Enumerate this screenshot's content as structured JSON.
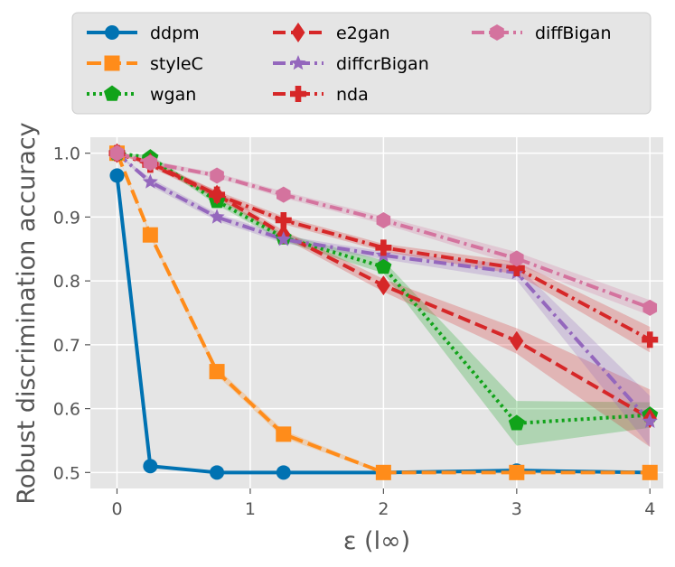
{
  "chart_data": {
    "type": "line",
    "title": "",
    "xlabel": "ε (l∞)",
    "ylabel": "Robust discrimination accuracy",
    "xlim": [
      -0.2,
      4.1
    ],
    "ylim": [
      0.475,
      1.025
    ],
    "xticks": [
      0,
      1,
      2,
      3,
      4
    ],
    "xtick_labels": [
      "0",
      "1",
      "2",
      "3",
      "4"
    ],
    "yticks": [
      0.5,
      0.6,
      0.7,
      0.8,
      0.9,
      1.0
    ],
    "ytick_labels": [
      "0.5",
      "0.6",
      "0.7",
      "0.8",
      "0.9",
      "1.0"
    ],
    "grid": true,
    "legend_position": "top",
    "series": [
      {
        "name": "ddpm",
        "color": "#0072B2",
        "dash": "",
        "marker": "circle",
        "x": [
          0,
          0.25,
          0.75,
          1.25,
          2,
          3,
          4
        ],
        "y": [
          0.965,
          0.51,
          0.5,
          0.5,
          0.5,
          0.503,
          0.5
        ],
        "band": [
          0,
          0,
          0,
          0,
          0,
          0.004,
          0
        ]
      },
      {
        "name": "styleC",
        "color": "#FF8C1A",
        "dash": "16,6",
        "marker": "square",
        "x": [
          0,
          0.25,
          0.75,
          1.25,
          2,
          3,
          4
        ],
        "y": [
          1.0,
          0.872,
          0.658,
          0.56,
          0.5,
          0.5,
          0.5
        ],
        "band": [
          0,
          0.004,
          0.006,
          0.006,
          0.002,
          0.002,
          0.002
        ]
      },
      {
        "name": "wgan",
        "color": "#11A31A",
        "dash": "3,4",
        "marker": "pentagon",
        "x": [
          0,
          0.25,
          0.75,
          1.25,
          2,
          3,
          4
        ],
        "y": [
          1.0,
          0.993,
          0.925,
          0.868,
          0.822,
          0.577,
          0.59
        ],
        "band": [
          0,
          0.004,
          0.006,
          0.006,
          0.01,
          0.035,
          0.02
        ]
      },
      {
        "name": "e2gan",
        "color": "#D62728",
        "dash": "14,6",
        "marker": "diamond",
        "x": [
          0,
          0.25,
          0.75,
          1.25,
          2,
          3,
          4
        ],
        "y": [
          1.0,
          0.985,
          0.935,
          0.873,
          0.793,
          0.706,
          0.585
        ],
        "band": [
          0,
          0.004,
          0.006,
          0.006,
          0.01,
          0.02,
          0.045
        ]
      },
      {
        "name": "diffcrBigan",
        "color": "#9467BD",
        "dash": "14,5,3,5",
        "marker": "star",
        "x": [
          0,
          0.25,
          0.75,
          1.25,
          2,
          3,
          4
        ],
        "y": [
          1.0,
          0.955,
          0.9,
          0.865,
          0.84,
          0.813,
          0.58
        ],
        "band": [
          0,
          0.006,
          0.006,
          0.006,
          0.006,
          0.012,
          0.04
        ]
      },
      {
        "name": "nda",
        "color": "#D62728",
        "dash": "14,5,3,5",
        "marker": "plus",
        "x": [
          0,
          0.25,
          0.75,
          1.25,
          2,
          3,
          4
        ],
        "y": [
          1.0,
          0.982,
          0.935,
          0.895,
          0.852,
          0.82,
          0.708
        ],
        "band": [
          0,
          0.004,
          0.006,
          0.006,
          0.006,
          0.01,
          0.02
        ]
      },
      {
        "name": "diffBigan",
        "color": "#D4739E",
        "dash": "14,5,3,5",
        "marker": "hexagon",
        "x": [
          0,
          0.25,
          0.75,
          1.25,
          2,
          3,
          4
        ],
        "y": [
          1.0,
          0.985,
          0.965,
          0.935,
          0.895,
          0.835,
          0.758
        ],
        "band": [
          0,
          0.004,
          0.004,
          0.005,
          0.006,
          0.01,
          0.012
        ]
      }
    ]
  }
}
